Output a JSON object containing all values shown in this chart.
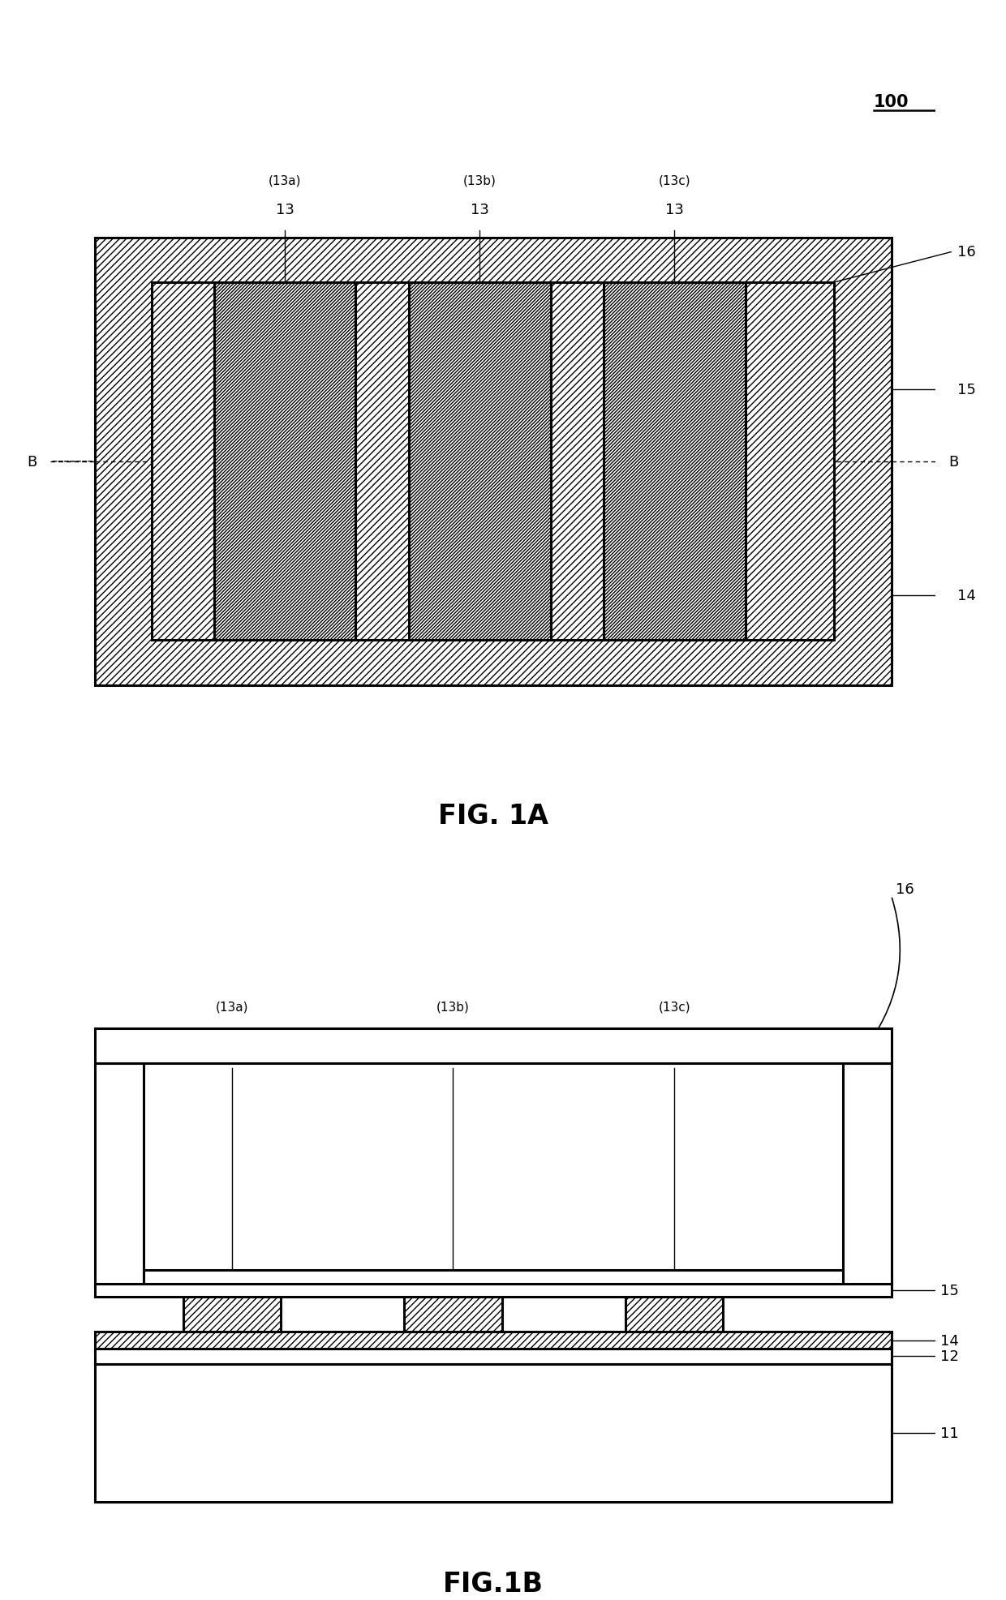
{
  "fig_width": 12.4,
  "fig_height": 19.74,
  "bg_color": "#ffffff",
  "fig1a_title": "FIG. 1A",
  "fig1b_title": "FIG.1B",
  "label_100": "100",
  "label_13a_top": "(13a)",
  "label_13b_top": "(13b)",
  "label_13c_top": "(13c)",
  "label_13": "13",
  "label_14": "14",
  "label_15": "15",
  "label_16": "16",
  "label_12": "12",
  "label_11": "11",
  "label_B": "B"
}
